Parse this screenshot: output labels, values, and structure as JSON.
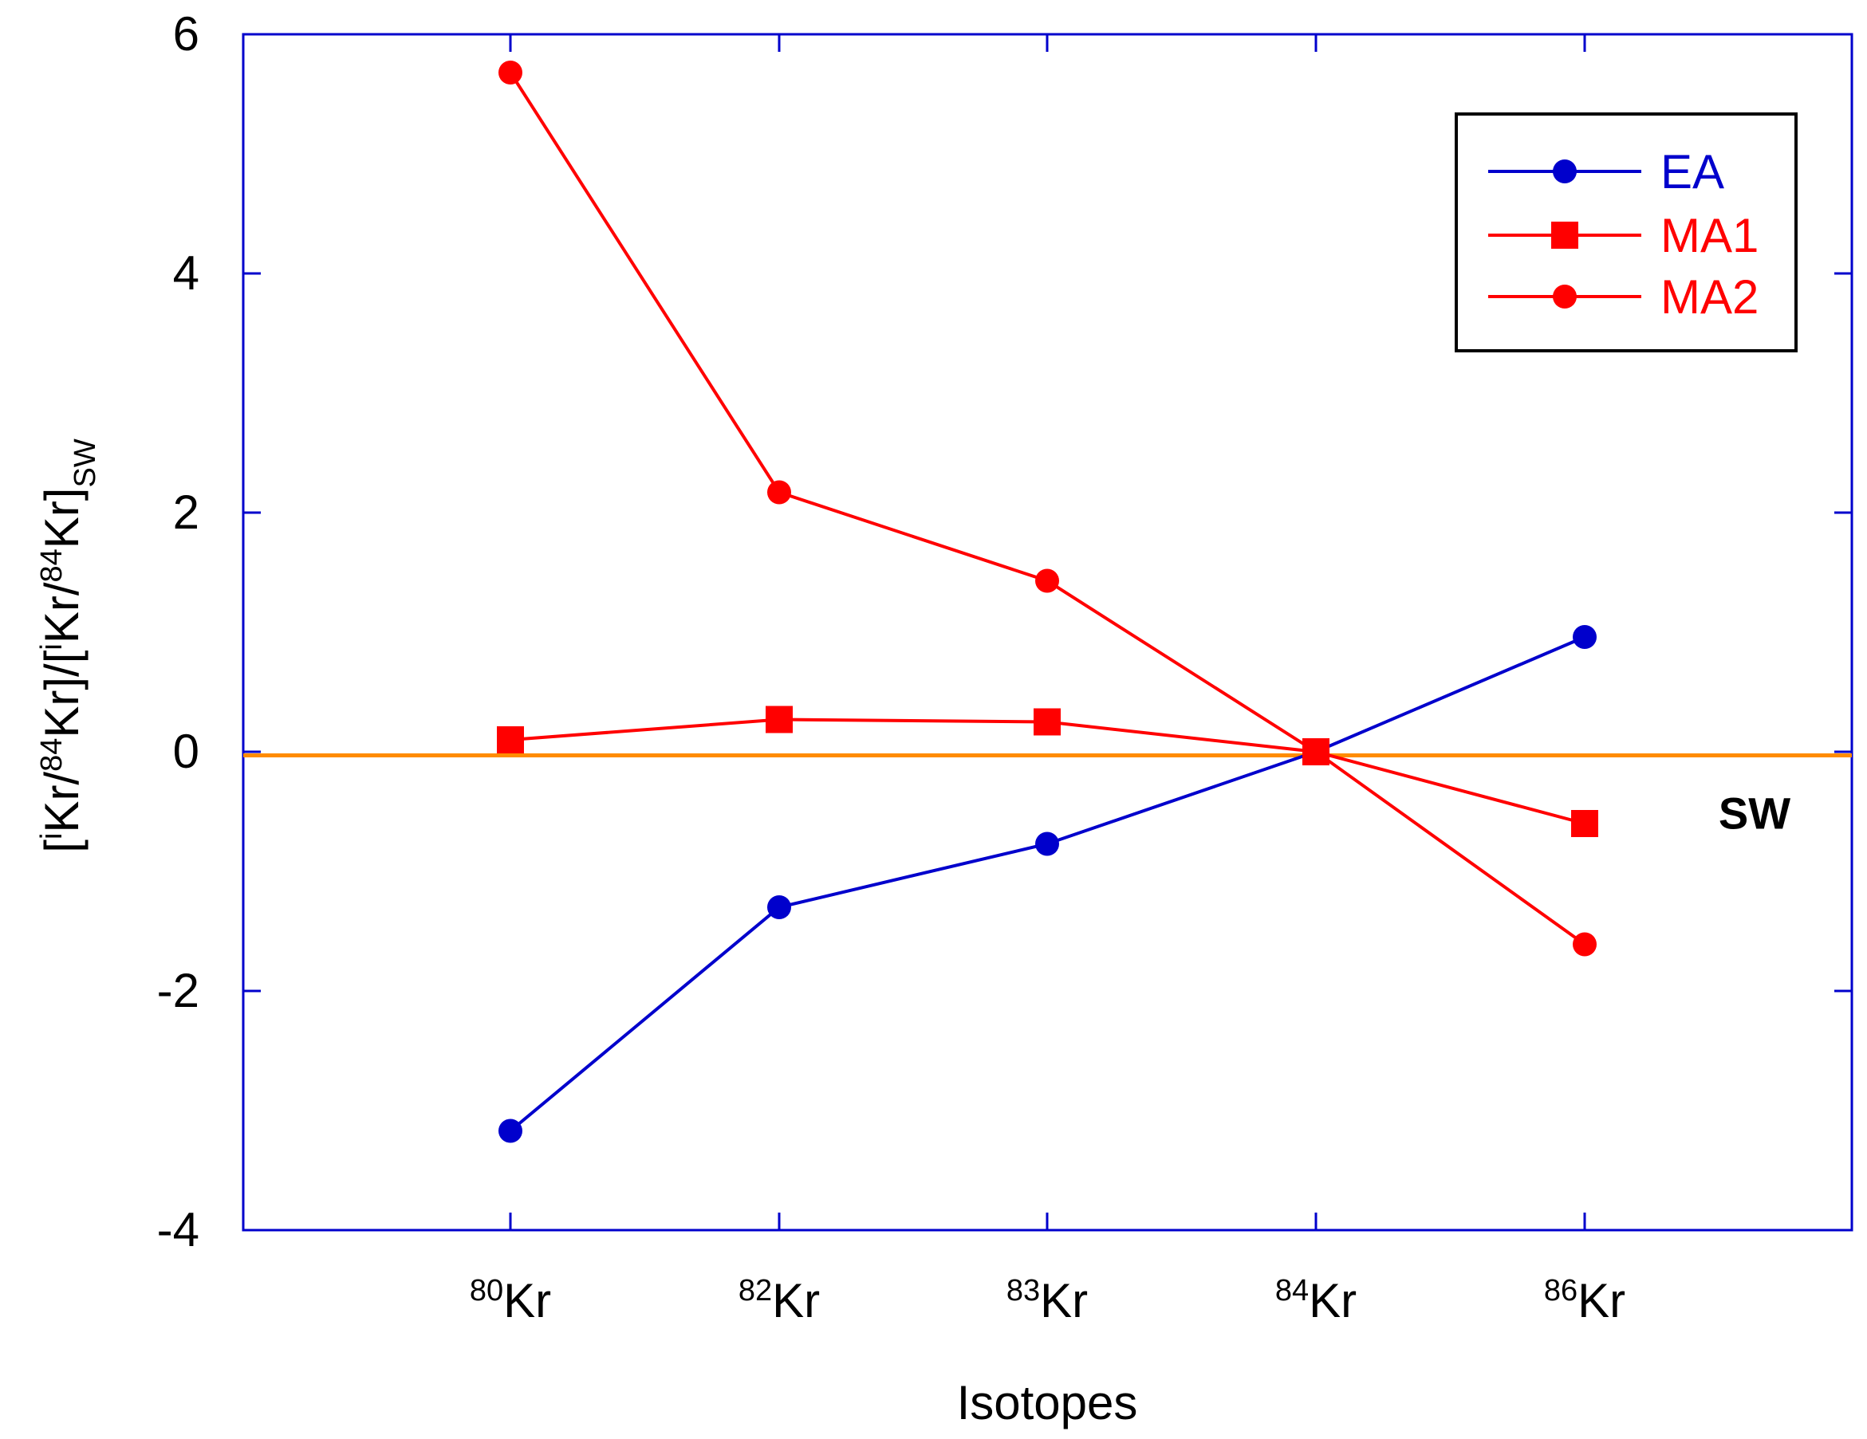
{
  "chart_data": {
    "type": "line",
    "title": "",
    "xlabel": "Isotopes",
    "ylabel": {
      "open": "[",
      "sup_i": "i",
      "kr": "Kr/",
      "sup_84": "84",
      "kr_close": "Kr]/[",
      "sup_i2": "i",
      "kr2": "Kr/",
      "sup_842": "84",
      "kr_close2": "Kr]",
      "sub": "SW"
    },
    "categories": [
      {
        "mass": "80",
        "element": "Kr"
      },
      {
        "mass": "82",
        "element": "Kr"
      },
      {
        "mass": "83",
        "element": "Kr"
      },
      {
        "mass": "84",
        "element": "Kr"
      },
      {
        "mass": "86",
        "element": "Kr"
      }
    ],
    "ylim": [
      -4,
      6
    ],
    "yticks": [
      "-4",
      "-2",
      "0",
      "2",
      "4",
      "6"
    ],
    "ytick_values": [
      -4,
      -2,
      0,
      2,
      4,
      6
    ],
    "series": [
      {
        "name": "EA",
        "color": "#0000cc",
        "marker": "circle",
        "values": [
          -3.17,
          -1.3,
          -0.77,
          0.0,
          0.96
        ]
      },
      {
        "name": "MA1",
        "color": "#ff0000",
        "marker": "square",
        "values": [
          0.1,
          0.27,
          0.25,
          0.0,
          -0.6
        ]
      },
      {
        "name": "MA2",
        "color": "#ff0000",
        "marker": "circle",
        "values": [
          5.68,
          2.17,
          1.43,
          0.0,
          -1.61
        ]
      }
    ],
    "reference_line": {
      "label": "SW",
      "value": -0.03,
      "color": "#ff8c00"
    },
    "legend_position": "top-right",
    "frame_color": "#0000cc"
  }
}
